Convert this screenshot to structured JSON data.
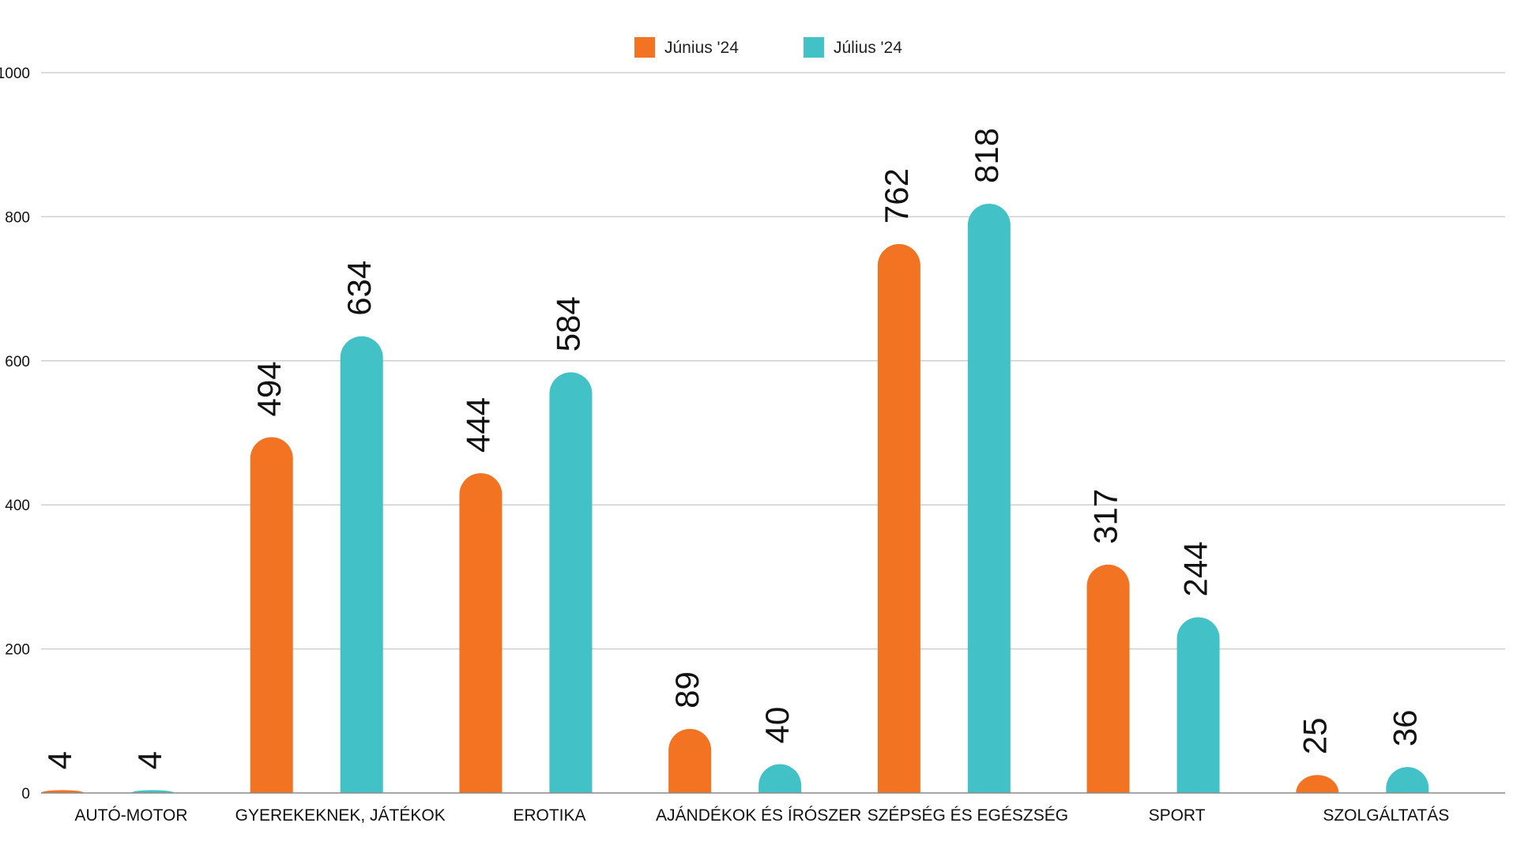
{
  "chart_data": {
    "type": "bar",
    "title": "",
    "xlabel": "",
    "ylabel": "",
    "ylim": [
      0,
      1000
    ],
    "yticks": [
      0,
      200,
      400,
      600,
      800,
      1000
    ],
    "ytick_labels": [
      "0",
      "200",
      "400",
      "600",
      "800",
      "1000"
    ],
    "grid": true,
    "legend_position": "top-center",
    "categories": [
      "AUTÓ-MOTOR",
      "GYEREKEKNEK, JÁTÉKOK",
      "EROTIKA",
      "AJÁNDÉKOK ÉS ÍRÓSZER",
      "SZÉPSÉG ÉS EGÉSZSÉG",
      "SPORT",
      "SZOLGÁLTATÁS"
    ],
    "series": [
      {
        "name": "Június '24",
        "color": "#f27321",
        "values": [
          4,
          494,
          444,
          89,
          762,
          317,
          25
        ]
      },
      {
        "name": "Július '24",
        "color": "#42c1c6",
        "values": [
          4,
          634,
          584,
          40,
          818,
          244,
          36
        ]
      }
    ]
  }
}
